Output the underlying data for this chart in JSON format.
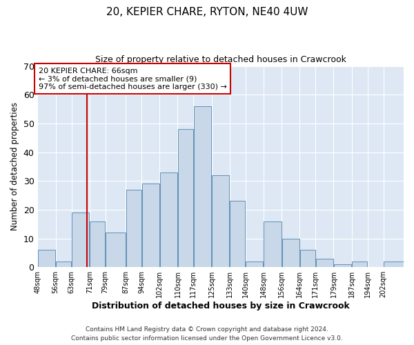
{
  "title": "20, KEPIER CHARE, RYTON, NE40 4UW",
  "subtitle": "Size of property relative to detached houses in Crawcrook",
  "xlabel": "Distribution of detached houses by size in Crawcrook",
  "ylabel": "Number of detached properties",
  "bar_color": "#c8d8e8",
  "bar_edge_color": "#6090b8",
  "background_color": "#dde8f4",
  "grid_color": "#ffffff",
  "bin_labels": [
    "48sqm",
    "56sqm",
    "63sqm",
    "71sqm",
    "79sqm",
    "87sqm",
    "94sqm",
    "102sqm",
    "110sqm",
    "117sqm",
    "125sqm",
    "133sqm",
    "140sqm",
    "148sqm",
    "156sqm",
    "164sqm",
    "171sqm",
    "179sqm",
    "187sqm",
    "194sqm",
    "202sqm"
  ],
  "bin_edges": [
    44,
    52,
    59,
    67,
    74,
    83,
    90,
    98,
    106,
    113,
    121,
    129,
    136,
    144,
    152,
    160,
    167,
    175,
    183,
    190,
    197,
    206
  ],
  "counts": [
    6,
    2,
    19,
    16,
    12,
    27,
    29,
    33,
    48,
    56,
    32,
    23,
    2,
    16,
    10,
    6,
    3,
    1,
    2,
    0,
    2
  ],
  "vline_x": 66,
  "vline_color": "#cc0000",
  "annotation_text": "20 KEPIER CHARE: 66sqm\n← 3% of detached houses are smaller (9)\n97% of semi-detached houses are larger (330) →",
  "annotation_box_color": "#ffffff",
  "annotation_box_edgecolor": "#cc0000",
  "ylim": [
    0,
    70
  ],
  "yticks": [
    0,
    10,
    20,
    30,
    40,
    50,
    60,
    70
  ],
  "footer_line1": "Contains HM Land Registry data © Crown copyright and database right 2024.",
  "footer_line2": "Contains public sector information licensed under the Open Government Licence v3.0."
}
